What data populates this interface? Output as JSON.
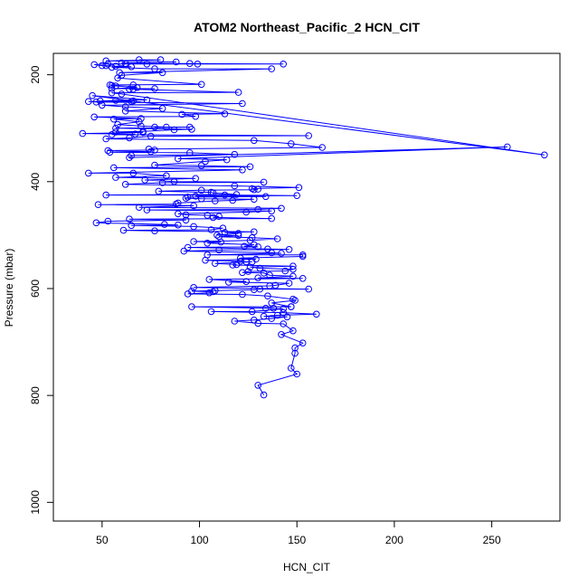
{
  "chart_data": {
    "type": "line",
    "title": "ATOM2 Northeast_Pacific_2 HCN_CIT",
    "xlabel": "HCN_CIT",
    "ylabel": "Pressure (mbar)",
    "xlim": [
      25,
      285
    ],
    "ylim": [
      1035,
      160
    ],
    "y_reversed": true,
    "x_ticks": [
      50,
      100,
      150,
      200,
      250
    ],
    "y_ticks": [
      200,
      400,
      600,
      800,
      1000
    ],
    "series_color": "#0000ff",
    "series": [
      {
        "marker": "open-circle",
        "x": [
          69,
          80,
          52,
          88,
          60,
          62,
          95,
          143,
          99,
          73,
          53,
          46,
          50,
          52,
          57,
          65,
          55,
          77,
          137,
          59,
          81,
          60,
          58,
          101,
          54,
          66,
          55,
          57,
          68,
          55,
          77,
          64,
          66,
          120,
          55,
          60,
          277,
          45,
          73,
          57,
          49,
          66,
          65,
          43,
          47,
          122,
          50,
          62,
          81,
          62,
          113,
          91,
          98,
          46,
          70,
          56,
          69,
          58,
          70,
          83,
          77,
          95,
          57,
          96,
          87,
          71,
          57,
          71,
          40,
          67,
          55,
          156,
          75,
          64,
          52,
          128,
          147,
          163,
          74,
          77,
          53,
          75,
          54,
          95,
          118,
          65,
          64,
          258,
          89,
          114,
          103,
          77,
          101,
          126,
          56,
          122,
          43,
          66,
          83,
          57,
          98,
          72,
          87,
          133,
          81,
          62,
          118,
          151,
          127,
          130,
          128,
          101,
          79,
          106,
          107,
          119,
          52,
          113,
          150,
          98,
          134,
          94,
          93,
          101,
          128,
          117,
          108,
          89,
          88,
          48,
          97,
          69,
          142,
          130,
          73,
          137,
          124,
          89,
          93,
          104,
          110,
          107,
          137,
          64,
          93,
          53,
          47,
          82,
          89,
          65,
          97,
          112,
          106,
          61,
          77,
          128,
          113,
          120,
          109,
          120,
          110,
          127,
          140,
          126,
          97,
          111,
          104,
          128,
          123,
          130,
          94,
          135,
          146,
          110,
          92,
          137,
          142,
          104,
          153,
          153,
          121,
          129,
          103,
          121,
          124,
          127,
          108,
          119,
          117,
          148,
          126,
          131,
          148,
          144,
          125,
          122,
          133,
          136,
          148,
          130,
          153,
          105,
          124,
          115,
          146,
          139,
          136,
          97,
          156,
          131,
          128,
          108,
          96,
          107,
          105,
          94,
          122,
          135,
          148,
          149,
          137,
          147,
          147,
          96,
          138,
          134,
          143,
          127,
          106,
          143,
          160,
          140,
          133,
          145,
          137,
          128,
          118,
          130,
          143,
          148,
          142,
          153,
          149,
          149,
          147,
          150,
          130,
          133
        ],
        "y": [
          172,
          172,
          174,
          176,
          178,
          179,
          179,
          180,
          180,
          180,
          180,
          181,
          183,
          183,
          184,
          185,
          186,
          189,
          189,
          196,
          196,
          201,
          206,
          218,
          219,
          219,
          220,
          221,
          224,
          226,
          226,
          227,
          227,
          233,
          234,
          236,
          350,
          239,
          247,
          248,
          249,
          249,
          250,
          250,
          251,
          254,
          257,
          260,
          263,
          268,
          273,
          274,
          278,
          279,
          282,
          283,
          288,
          293,
          296,
          298,
          298,
          298,
          300,
          302,
          303,
          306,
          307,
          308,
          310,
          311,
          312,
          314,
          315,
          318,
          320,
          323,
          329,
          336,
          339,
          341,
          342,
          344,
          345,
          346,
          349,
          351,
          355,
          335,
          357,
          359,
          362,
          369,
          370,
          372,
          374,
          378,
          384,
          384,
          389,
          392,
          394,
          397,
          400,
          401,
          402,
          405,
          408,
          411,
          413,
          414,
          415,
          416,
          418,
          420,
          421,
          424,
          425,
          425,
          426,
          427,
          428,
          429,
          431,
          432,
          433,
          435,
          436,
          440,
          442,
          443,
          445,
          448,
          450,
          452,
          453,
          455,
          457,
          460,
          462,
          463,
          465,
          467,
          469,
          470,
          472,
          474,
          477,
          480,
          481,
          482,
          484,
          487,
          490,
          491,
          492,
          494,
          495,
          497,
          500,
          501,
          503,
          505,
          507,
          510,
          512,
          513,
          515,
          518,
          521,
          522,
          523,
          526,
          527,
          528,
          530,
          533,
          534,
          537,
          537,
          540,
          543,
          545,
          547,
          549,
          550,
          550,
          553,
          555,
          556,
          558,
          560,
          562,
          564,
          567,
          568,
          570,
          571,
          575,
          577,
          580,
          581,
          583,
          587,
          588,
          590,
          594,
          595,
          598,
          601,
          601,
          602,
          604,
          605,
          606,
          608,
          610,
          611,
          614,
          620,
          622,
          627,
          634,
          634,
          634,
          637,
          637,
          638,
          643,
          643,
          645,
          648,
          650,
          652,
          653,
          656,
          659,
          661,
          665,
          666,
          679,
          686,
          702,
          711,
          721,
          749,
          760,
          781,
          799
        ]
      }
    ]
  }
}
